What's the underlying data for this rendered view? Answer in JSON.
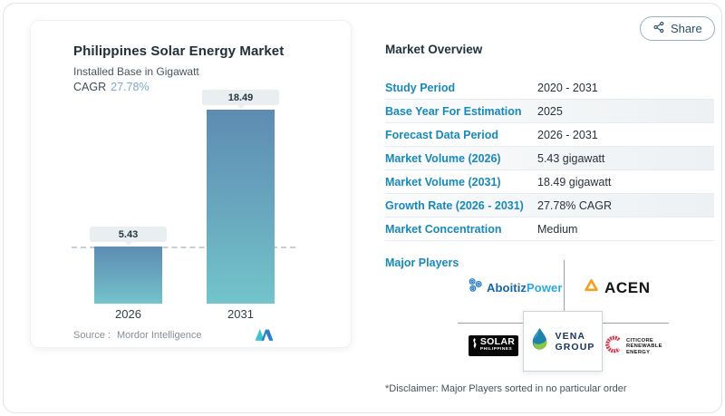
{
  "share": {
    "label": "Share"
  },
  "chart_data": {
    "type": "bar",
    "title": "Philippines Solar Energy Market",
    "subtitle": "Installed Base in Gigawatt",
    "cagr_label": "CAGR",
    "cagr_value": "27.78%",
    "categories": [
      "2026",
      "2031"
    ],
    "values": [
      5.43,
      18.49
    ],
    "bar_labels": [
      "5.43",
      "18.49"
    ],
    "unit": "gigawatt",
    "ylim": [
      0,
      18.49
    ],
    "grid": false,
    "reference_line_value": 5.43,
    "legend": "none",
    "source_label": "Source :",
    "source_name": "Mordor Intelligence"
  },
  "overview": {
    "title": "Market Overview",
    "rows": [
      {
        "label": "Study Period",
        "value": "2020 - 2031"
      },
      {
        "label": "Base Year For Estimation",
        "value": "2025"
      },
      {
        "label": "Forecast Data Period",
        "value": "2026 - 2031"
      },
      {
        "label": "Market Volume (2026)",
        "value": "5.43 gigawatt"
      },
      {
        "label": "Market Volume (2031)",
        "value": "18.49 gigawatt"
      },
      {
        "label": "Growth Rate (2026 - 2031)",
        "value": "27.78% CAGR"
      },
      {
        "label": "Market Concentration",
        "value": "Medium"
      }
    ],
    "major_players_label": "Major Players",
    "disclaimer": "*Disclaimer: Major Players sorted in no particular order"
  },
  "players": {
    "aboitiz": {
      "part1": "Aboitiz",
      "part2": "Power"
    },
    "acen": {
      "name": "ACEN"
    },
    "solar": {
      "line1": "SOLAR",
      "line2": "PHILIPPINES"
    },
    "vena": {
      "line1": "VENA",
      "line2": "GROUP"
    },
    "citicore": {
      "line1": "CITICORE",
      "line2": "RENEWABLE",
      "line3": "ENERGY"
    }
  },
  "colors": {
    "accent_label": "#1789bb",
    "bar_gradient_top": "#5e8cb2",
    "bar_gradient_bottom": "#73c4cb",
    "cagr_value": "#7caac5",
    "aboitiz_dark": "#1565ad",
    "aboitiz_light": "#2aa9e0",
    "acen_orange": "#f6a01e",
    "citicore_red": "#d23f55",
    "vena_navy": "#16335c",
    "vena_teal": "#1e82ab",
    "vena_green": "#8dc63f",
    "mordor_teal": "#3fc3ca",
    "mordor_blue": "#2d7fc0"
  }
}
